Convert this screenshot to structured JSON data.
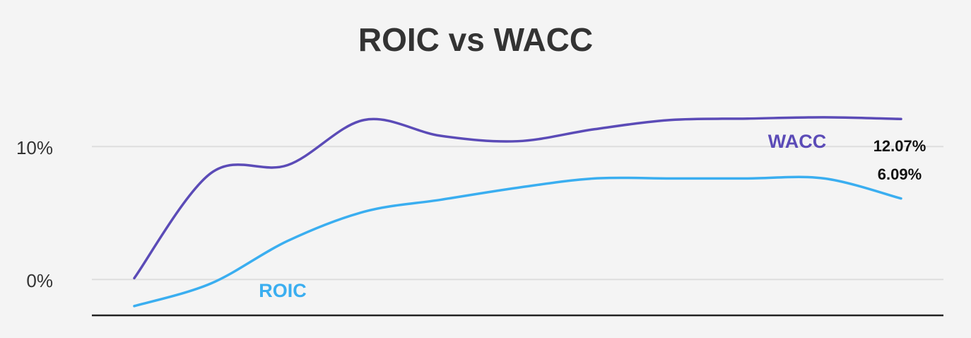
{
  "chart_data": {
    "type": "line",
    "title": "ROIC vs WACC",
    "categories": [
      null,
      null,
      null,
      null,
      null,
      null,
      null,
      null,
      null,
      null,
      null
    ],
    "ylim": [
      -2.7,
      14
    ],
    "yticks": [
      {
        "value": 0,
        "label": "0%"
      },
      {
        "value": 10,
        "label": "10%"
      }
    ],
    "grid": true,
    "series": [
      {
        "name": "WACC",
        "color": "#5b4bb7",
        "values": [
          0.1,
          8.0,
          8.6,
          12.0,
          10.8,
          10.4,
          11.3,
          12.0,
          12.1,
          12.2,
          12.07
        ],
        "value_labels": [
          null,
          null,
          null,
          null,
          null,
          null,
          null,
          null,
          null,
          null,
          "12.07%"
        ]
      },
      {
        "name": "ROIC",
        "color": "#3aaef0",
        "values": [
          -2.0,
          -0.3,
          2.9,
          5.1,
          6.0,
          6.9,
          7.6,
          7.6,
          7.6,
          7.6,
          6.09
        ],
        "value_labels": [
          null,
          null,
          null,
          null,
          null,
          null,
          null,
          null,
          null,
          null,
          "6.09%"
        ]
      }
    ]
  }
}
